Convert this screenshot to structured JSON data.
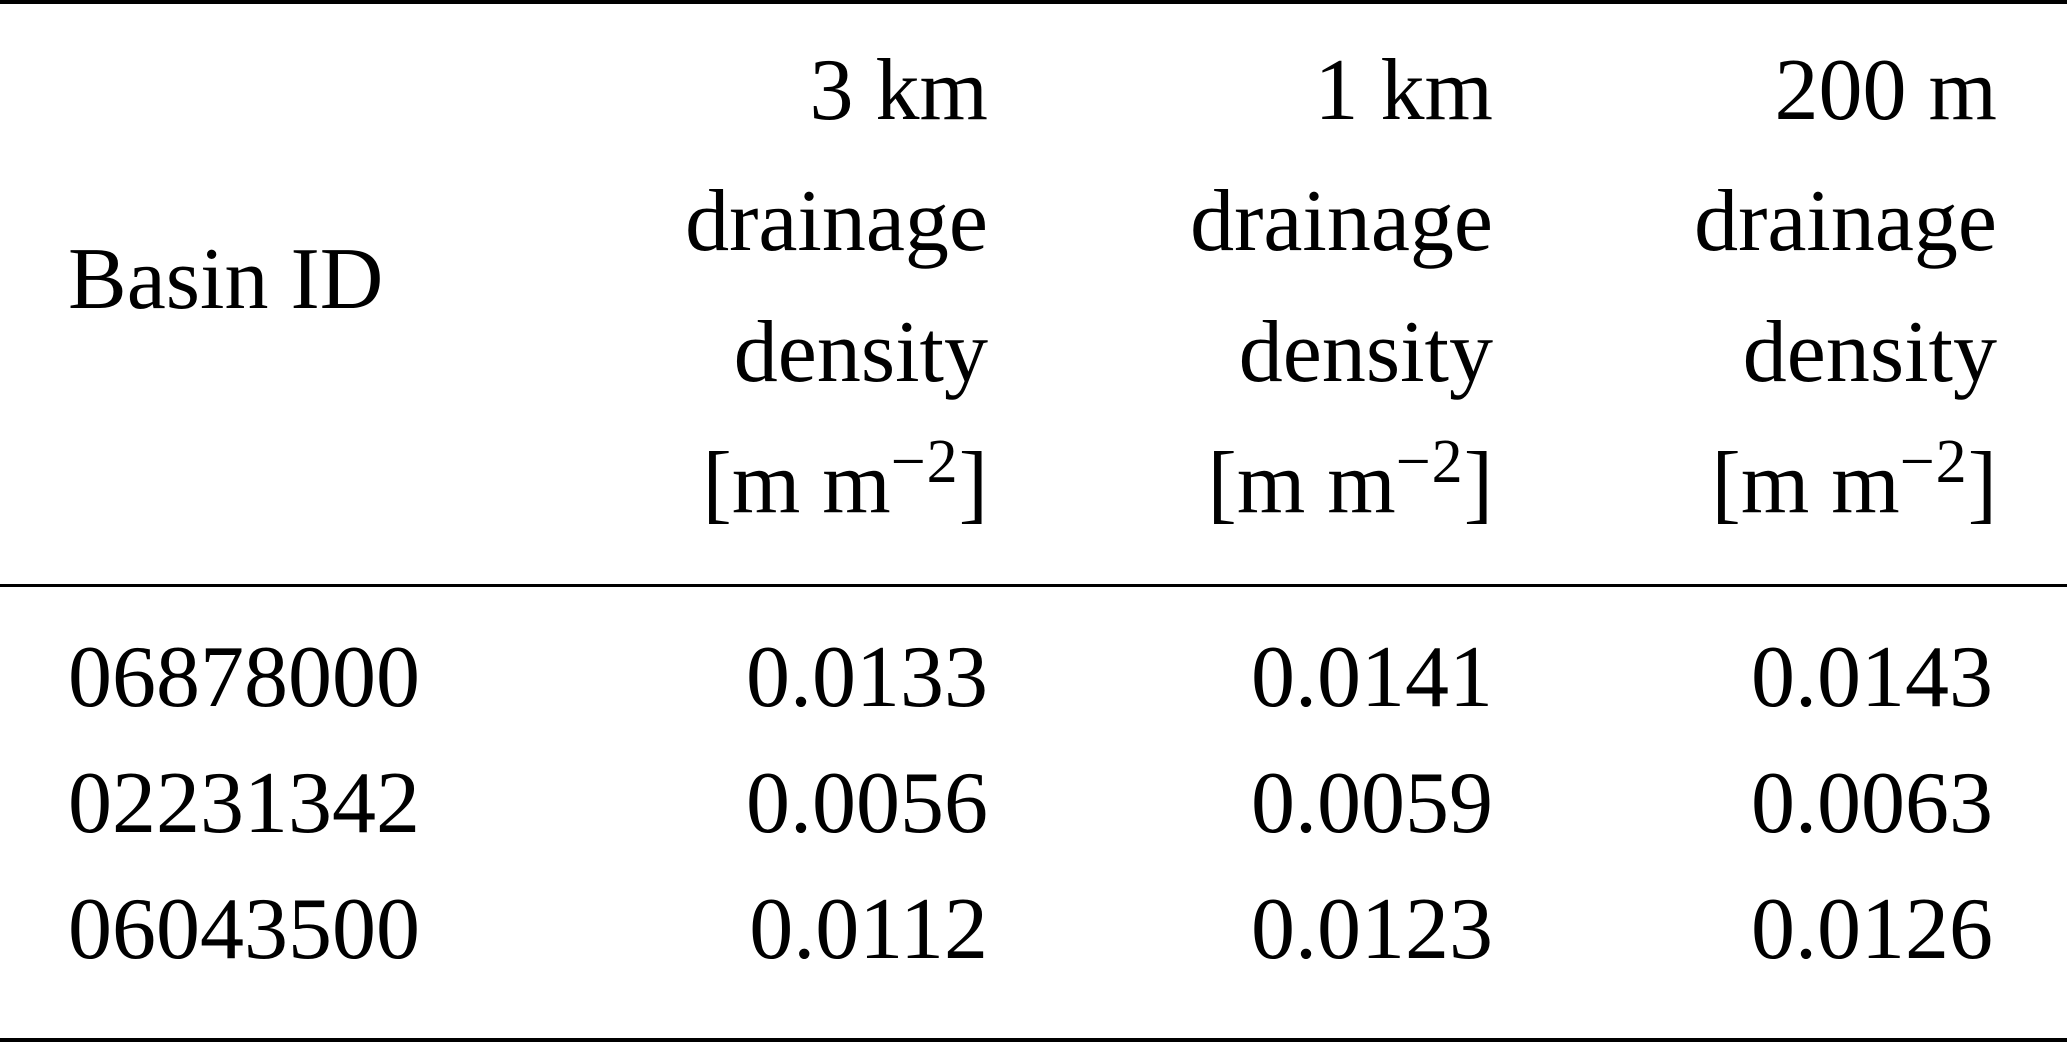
{
  "table": {
    "header": {
      "basin_label": "Basin ID",
      "columns": [
        {
          "resolution": "3 km",
          "line2": "drainage",
          "line3": "density",
          "unit_prefix": "[m m",
          "unit_exp": "−2",
          "unit_suffix": "]"
        },
        {
          "resolution": "1 km",
          "line2": "drainage",
          "line3": "density",
          "unit_prefix": "[m m",
          "unit_exp": "−2",
          "unit_suffix": "]"
        },
        {
          "resolution": "200 m",
          "line2": "drainage",
          "line3": "density",
          "unit_prefix": "[m m",
          "unit_exp": "−2",
          "unit_suffix": "]"
        }
      ]
    },
    "rows": [
      {
        "basin_id": "06878000",
        "values": [
          "0.0133",
          "0.0141",
          "0.0143"
        ]
      },
      {
        "basin_id": "02231342",
        "values": [
          "0.0056",
          "0.0059",
          "0.0063"
        ]
      },
      {
        "basin_id": "06043500",
        "values": [
          "0.0112",
          "0.0123",
          "0.0126"
        ]
      }
    ]
  }
}
